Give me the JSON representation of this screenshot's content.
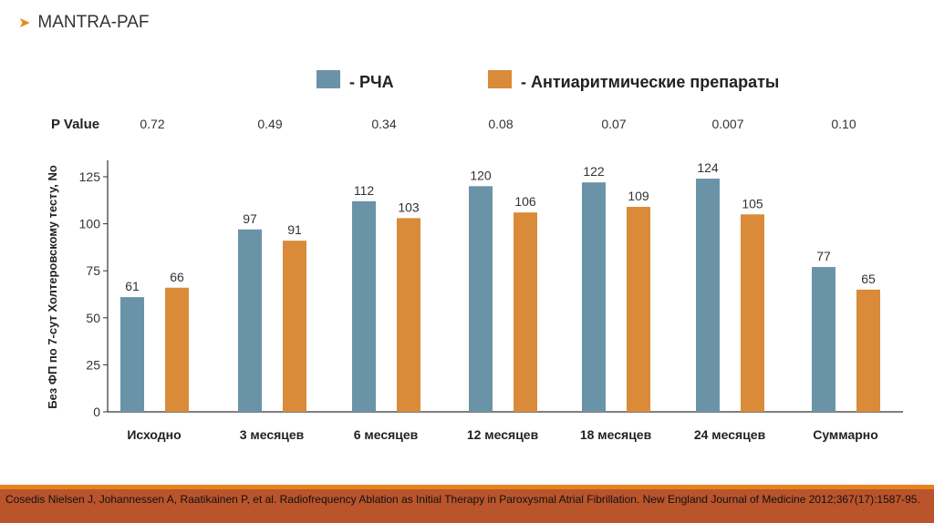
{
  "slide": {
    "title": "MANTRA-PAF",
    "bullet_icon": "arrow-bullet-icon"
  },
  "chart_data": {
    "type": "bar",
    "title": "",
    "xlabel": "",
    "ylabel": "Без ФП по 7-сут Холтеровскому тесту, No",
    "ylim": [
      0,
      125
    ],
    "yticks": [
      0,
      25,
      50,
      75,
      100,
      125
    ],
    "categories": [
      "Исходно",
      "3 месяцев",
      "6 месяцев",
      "12 месяцев",
      "18 месяцев",
      "24 месяцев",
      "Суммарно"
    ],
    "series": [
      {
        "name": "- РЧА",
        "color": "#6b93a8",
        "values": [
          61,
          97,
          112,
          120,
          122,
          124,
          77
        ]
      },
      {
        "name": "- Антиаритмические препараты",
        "color": "#d98b3a",
        "values": [
          66,
          91,
          103,
          106,
          109,
          105,
          65
        ]
      }
    ],
    "p_value_label": "P Value",
    "p_values": [
      "0.72",
      "0.49",
      "0.34",
      "0.08",
      "0.07",
      "0.007",
      "0.10"
    ],
    "legend_position": "top"
  },
  "footer": {
    "citation": "Cosedis Nielsen J, Johannessen A, Raatikainen P, et al. Radiofrequency Ablation as Initial Therapy in Paroxysmal Atrial Fibrillation. New England Journal of Medicine 2012;367(17):1587-95."
  }
}
